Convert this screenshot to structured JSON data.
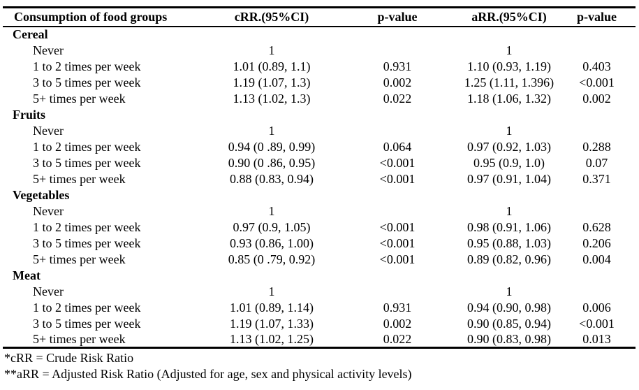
{
  "colors": {
    "text": "#000000",
    "border": "#000000",
    "background": "#ffffff"
  },
  "table": {
    "columns": [
      "Consumption of food groups",
      "cRR.(95%CI)",
      "p-value",
      "aRR.(95%CI)",
      "p-value"
    ],
    "sections": [
      {
        "name": "Cereal",
        "rows": [
          {
            "label": "Never",
            "crr": "1",
            "p_crr": "",
            "arr": "1",
            "p_arr": ""
          },
          {
            "label": "1 to 2 times per week",
            "crr": "1.01 (0.89, 1.1)",
            "p_crr": "0.931",
            "arr": "1.10 (0.93, 1.19)",
            "p_arr": "0.403"
          },
          {
            "label": "3 to 5 times per week",
            "crr": "1.19 (1.07, 1.3)",
            "p_crr": "0.002",
            "arr": "1.25 (1.11, 1.396)",
            "p_arr": "<0.001"
          },
          {
            "label": "5+ times per week",
            "crr": "1.13 (1.02, 1.3)",
            "p_crr": "0.022",
            "arr": "1.18 (1.06, 1.32)",
            "p_arr": "0.002"
          }
        ]
      },
      {
        "name": "Fruits",
        "rows": [
          {
            "label": "Never",
            "crr": "1",
            "p_crr": "",
            "arr": "1",
            "p_arr": ""
          },
          {
            "label": "1 to 2 times per week",
            "crr": "0.94 (0 .89, 0.99)",
            "p_crr": "0.064",
            "arr": "0.97 (0.92, 1.03)",
            "p_arr": "0.288"
          },
          {
            "label": "3 to 5 times per week",
            "crr": "0.90 (0 .86, 0.95)",
            "p_crr": "<0.001",
            "arr": "0.95 (0.9, 1.0)",
            "p_arr": "0.07"
          },
          {
            "label": "5+ times per week",
            "crr": "0.88 (0.83, 0.94)",
            "p_crr": "<0.001",
            "arr": "0.97 (0.91, 1.04)",
            "p_arr": "0.371"
          }
        ]
      },
      {
        "name": "Vegetables",
        "rows": [
          {
            "label": "Never",
            "crr": "1",
            "p_crr": "",
            "arr": "1",
            "p_arr": ""
          },
          {
            "label": "1 to 2 times per week",
            "crr": "0.97 (0.9, 1.05)",
            "p_crr": "<0.001",
            "arr": "0.98 (0.91, 1.06)",
            "p_arr": "0.628"
          },
          {
            "label": "3 to 5 times per week",
            "crr": "0.93 (0.86, 1.00)",
            "p_crr": "<0.001",
            "arr": "0.95 (0.88, 1.03)",
            "p_arr": "0.206"
          },
          {
            "label": "5+ times per week",
            "crr": "0.85 (0 .79, 0.92)",
            "p_crr": "<0.001",
            "arr": "0.89 (0.82, 0.96)",
            "p_arr": "0.004"
          }
        ]
      },
      {
        "name": "Meat",
        "rows": [
          {
            "label": "Never",
            "crr": "1",
            "p_crr": "",
            "arr": "1",
            "p_arr": ""
          },
          {
            "label": "1 to 2 times per week",
            "crr": "1.01 (0.89, 1.14)",
            "p_crr": "0.931",
            "arr": "0.94 (0.90, 0.98)",
            "p_arr": "0.006"
          },
          {
            "label": "3 to 5 times per week",
            "crr": "1.19 (1.07, 1.33)",
            "p_crr": "0.002",
            "arr": "0.90 (0.85, 0.94)",
            "p_arr": "<0.001"
          },
          {
            "label": "5+ times per week",
            "crr": "1.13 (1.02, 1.25)",
            "p_crr": "0.022",
            "arr": "0.90 (0.83, 0.98)",
            "p_arr": "0.013"
          }
        ]
      }
    ]
  },
  "footnotes": [
    "*cRR = Crude Risk Ratio",
    "**aRR = Adjusted Risk Ratio (Adjusted for age, sex and physical activity levels)"
  ]
}
